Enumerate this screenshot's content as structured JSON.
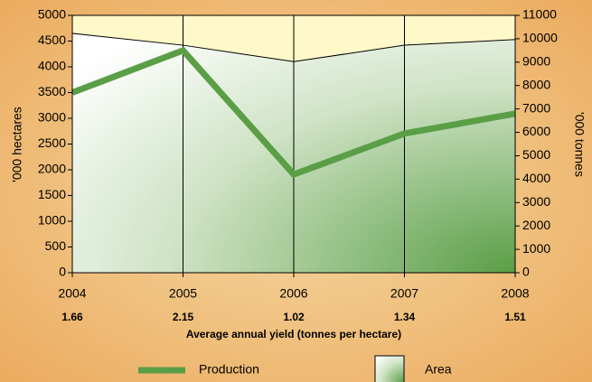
{
  "chart_data": {
    "type": "line",
    "categories": [
      "2004",
      "2005",
      "2006",
      "2007",
      "2008"
    ],
    "yields": [
      "1.66",
      "2.15",
      "1.02",
      "1.34",
      "1.51"
    ],
    "xlabel": "Average annual yield (tonnes per hectare)",
    "ylabel": "'000 hectares",
    "y2label": "'000 tonnes",
    "ylim": [
      0,
      5000
    ],
    "yticks": [
      0,
      500,
      1000,
      1500,
      2000,
      2500,
      3000,
      3500,
      4000,
      4500,
      5000
    ],
    "y2lim": [
      0,
      11000
    ],
    "y2ticks": [
      0,
      1000,
      2000,
      3000,
      4000,
      5000,
      6000,
      7000,
      8000,
      9000,
      10000,
      11000
    ],
    "series": [
      {
        "name": "Area",
        "kind": "area",
        "color": "#5a9e46",
        "values": [
          4650,
          4420,
          4100,
          4420,
          4530
        ]
      },
      {
        "name": "Production",
        "kind": "line",
        "color": "#5a9e46",
        "axis": "y2",
        "values": [
          7700,
          9500,
          4200,
          5950,
          6800
        ]
      }
    ],
    "grid": true
  }
}
